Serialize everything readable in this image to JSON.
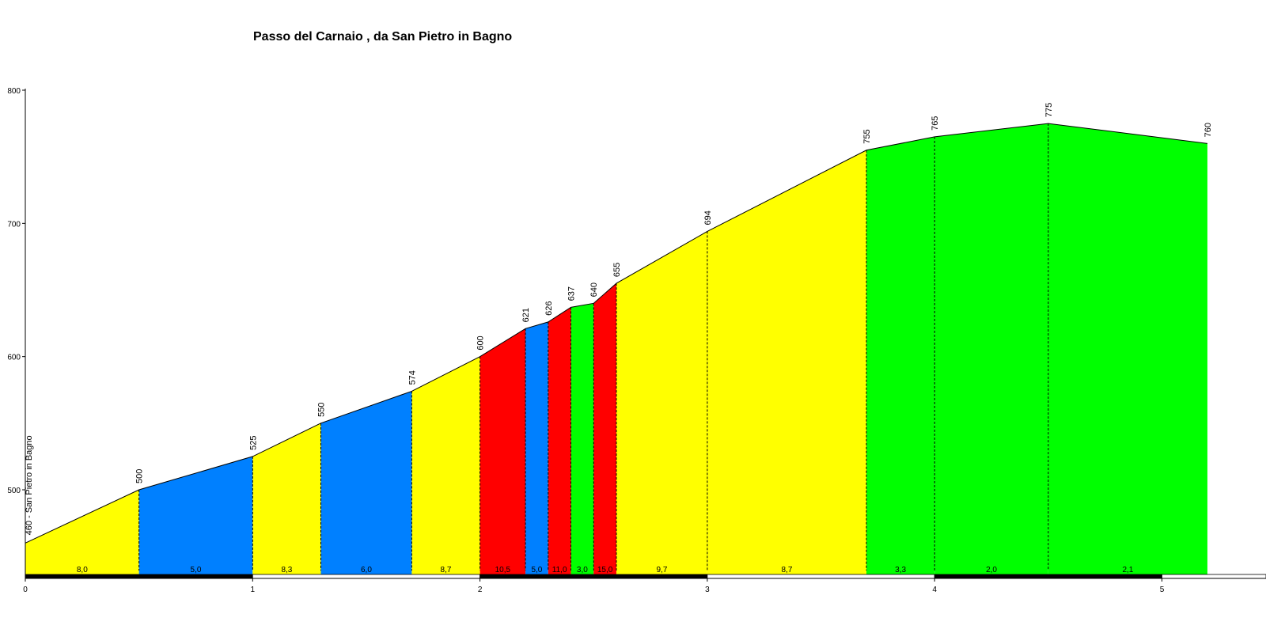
{
  "chart_data": {
    "type": "area",
    "title": "Passo del Carnaio , da San Pietro in Bagno",
    "xlabel": "",
    "ylabel": "",
    "xlim": [
      0,
      5.5
    ],
    "ylim": [
      440,
      800
    ],
    "x_ticks": [
      "0",
      "1",
      "2",
      "3",
      "4",
      "5"
    ],
    "y_ticks": [
      "500",
      "600",
      "700",
      "800"
    ],
    "start_label": "460 - San Pietro in Bagno",
    "colors": {
      "yellow": "#ffff00",
      "blue": "#0080ff",
      "red": "#ff0000",
      "green": "#00ff00"
    },
    "points": [
      {
        "x": 0.0,
        "y": 460,
        "label": "460 - San Pietro in Bagno"
      },
      {
        "x": 0.5,
        "y": 500,
        "label": "500"
      },
      {
        "x": 1.0,
        "y": 525,
        "label": "525"
      },
      {
        "x": 1.3,
        "y": 550,
        "label": "550"
      },
      {
        "x": 1.7,
        "y": 574,
        "label": "574"
      },
      {
        "x": 2.0,
        "y": 600,
        "label": "600"
      },
      {
        "x": 2.2,
        "y": 621,
        "label": "621"
      },
      {
        "x": 2.3,
        "y": 626,
        "label": "626"
      },
      {
        "x": 2.4,
        "y": 637,
        "label": "637"
      },
      {
        "x": 2.5,
        "y": 640,
        "label": "640"
      },
      {
        "x": 2.6,
        "y": 655,
        "label": "655"
      },
      {
        "x": 3.0,
        "y": 694,
        "label": "694"
      },
      {
        "x": 3.7,
        "y": 755,
        "label": "755"
      },
      {
        "x": 4.0,
        "y": 765,
        "label": "765"
      },
      {
        "x": 4.5,
        "y": 775,
        "label": "775"
      },
      {
        "x": 5.2,
        "y": 760,
        "label": "760"
      }
    ],
    "segments": [
      {
        "gradient": "8,0",
        "color": "yellow"
      },
      {
        "gradient": "5,0",
        "color": "blue"
      },
      {
        "gradient": "8,3",
        "color": "yellow"
      },
      {
        "gradient": "6,0",
        "color": "blue"
      },
      {
        "gradient": "8,7",
        "color": "yellow"
      },
      {
        "gradient": "10,5",
        "color": "red"
      },
      {
        "gradient": "5,0",
        "color": "blue"
      },
      {
        "gradient": "11,0",
        "color": "red"
      },
      {
        "gradient": "3,0",
        "color": "green"
      },
      {
        "gradient": "15,0",
        "color": "red"
      },
      {
        "gradient": "9,7",
        "color": "yellow"
      },
      {
        "gradient": "8,7",
        "color": "yellow"
      },
      {
        "gradient": "3,3",
        "color": "green"
      },
      {
        "gradient": "2,0",
        "color": "green"
      },
      {
        "gradient": "2,1",
        "color": "green"
      }
    ]
  }
}
